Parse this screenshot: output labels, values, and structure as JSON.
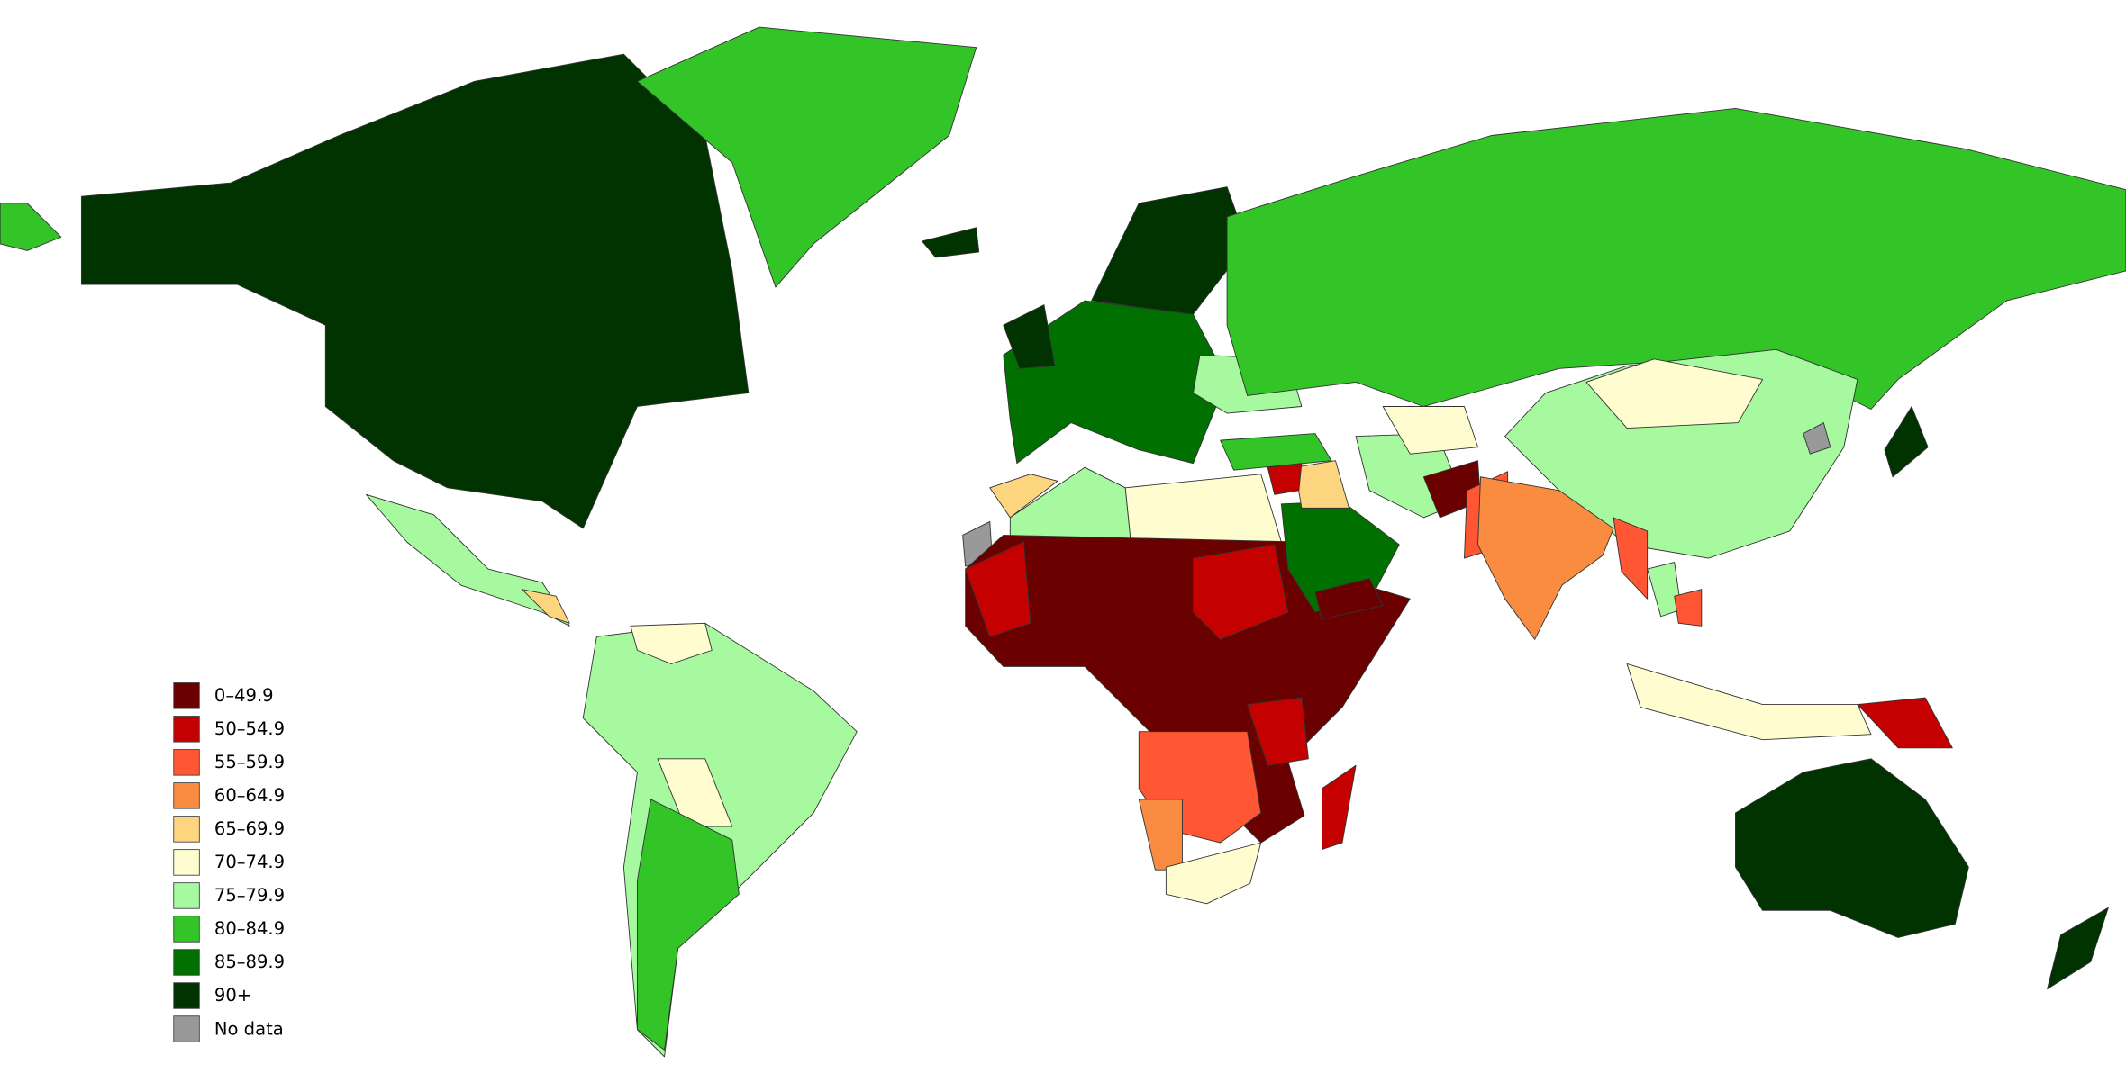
{
  "legend": {
    "items": [
      {
        "label": "0–49.9",
        "color": "#6b0000"
      },
      {
        "label": "50–54.9",
        "color": "#c40000"
      },
      {
        "label": "55–59.9",
        "color": "#ff5733"
      },
      {
        "label": "60–64.9",
        "color": "#f98c40"
      },
      {
        "label": "65–69.9",
        "color": "#fdd57e"
      },
      {
        "label": "70–74.9",
        "color": "#fffdd0"
      },
      {
        "label": "75–79.9",
        "color": "#a6f99e"
      },
      {
        "label": "80–84.9",
        "color": "#33c427"
      },
      {
        "label": "85–89.9",
        "color": "#007000"
      },
      {
        "label": "90+",
        "color": "#003300"
      },
      {
        "label": "No data",
        "color": "#999999"
      }
    ]
  }
}
